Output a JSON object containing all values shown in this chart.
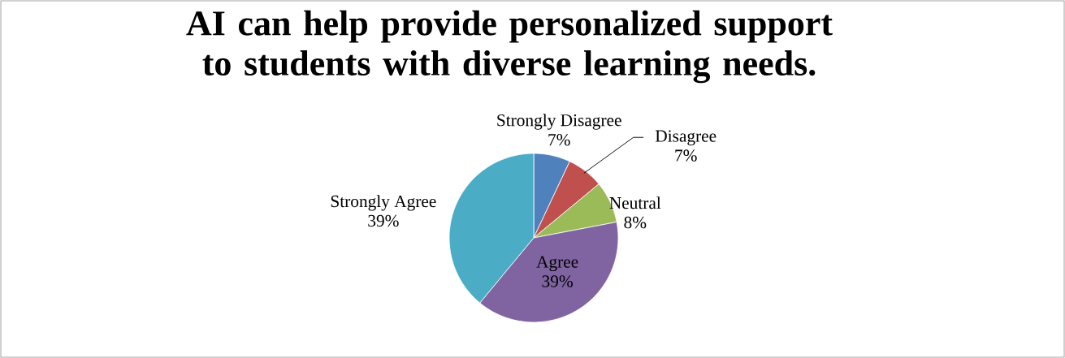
{
  "chart_data": {
    "type": "pie",
    "title": "AI can help provide personalized support to students with diverse learning needs.",
    "categories": [
      "Strongly Disagree",
      "Disagree",
      "Neutral",
      "Agree",
      "Strongly Agree"
    ],
    "values": [
      7,
      7,
      8,
      39,
      39
    ],
    "value_labels": [
      "7%",
      "7%",
      "8%",
      "39%",
      "39%"
    ],
    "colors": [
      "#4f81bd",
      "#c0504d",
      "#9bbb59",
      "#8064a2",
      "#4bacc6"
    ],
    "legend": false
  }
}
